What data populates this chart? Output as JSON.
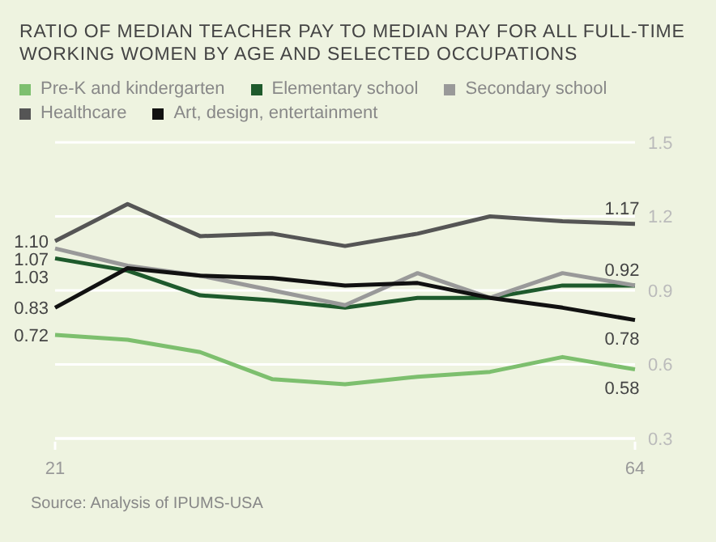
{
  "chart_data": {
    "type": "line",
    "title": "RATIO OF MEDIAN TEACHER PAY TO MEDIAN PAY FOR ALL FULL-TIME WORKING WOMEN BY AGE AND SELECTED OCCUPATIONS",
    "categories": [
      "21",
      null,
      null,
      null,
      null,
      null,
      null,
      null,
      "64"
    ],
    "series": [
      {
        "name": "Pre-K and kindergarten",
        "color": "#7dbf6e",
        "values": [
          0.72,
          0.7,
          0.65,
          0.54,
          0.52,
          0.55,
          0.57,
          0.63,
          0.58
        ],
        "value_labels": [
          "0.72",
          null,
          null,
          null,
          null,
          null,
          null,
          null,
          "0.58"
        ]
      },
      {
        "name": "Elementary school",
        "color": "#1e5a2c",
        "values": [
          1.03,
          0.98,
          0.88,
          0.86,
          0.83,
          0.87,
          0.87,
          0.92,
          0.92
        ],
        "value_labels": [
          "1.03",
          null,
          null,
          null,
          null,
          null,
          null,
          null,
          "0.92"
        ]
      },
      {
        "name": "Secondary school",
        "color": "#999999",
        "values": [
          1.07,
          1.0,
          0.96,
          0.9,
          0.84,
          0.97,
          0.87,
          0.97,
          0.92
        ],
        "value_labels": [
          "1.07",
          null,
          null,
          null,
          null,
          null,
          null,
          null,
          null
        ]
      },
      {
        "name": "Healthcare",
        "color": "#555555",
        "values": [
          1.1,
          1.25,
          1.12,
          1.13,
          1.08,
          1.13,
          1.2,
          1.18,
          1.17
        ],
        "value_labels": [
          "1.10",
          null,
          null,
          null,
          null,
          null,
          null,
          null,
          "1.17"
        ]
      },
      {
        "name": "Art, design, entertainment",
        "color": "#111111",
        "values": [
          0.83,
          0.99,
          0.96,
          0.95,
          0.92,
          0.93,
          0.87,
          0.83,
          0.78
        ],
        "value_labels": [
          "0.83",
          null,
          null,
          null,
          null,
          null,
          null,
          null,
          "0.78"
        ]
      }
    ],
    "ylim": [
      0.3,
      1.5
    ],
    "yticks": [
      0.3,
      0.6,
      0.9,
      1.2,
      1.5
    ],
    "grid": "y",
    "legend": "top",
    "marker": "none",
    "line_style": "solid",
    "annotations": [
      "Source: Analysis of IPUMS-USA"
    ]
  }
}
